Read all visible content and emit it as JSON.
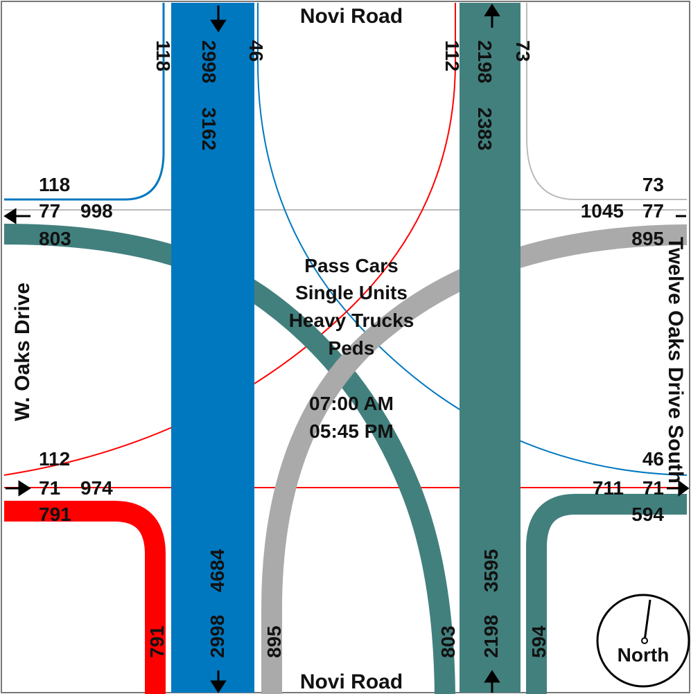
{
  "roads": {
    "north": "Novi Road",
    "south": "Novi Road",
    "west": "W. Oaks Drive",
    "east": "Twelve Oaks Drive South"
  },
  "legend": {
    "categories": [
      "Pass Cars",
      "Single Units",
      "Heavy Trucks",
      "Peds"
    ],
    "start_time": "07:00 AM",
    "end_time": "05:45 PM"
  },
  "north_leg": {
    "right_turn": "118",
    "through": "2998",
    "total": "3162",
    "left_turn": "46",
    "in_right": "112",
    "in_through": "2198",
    "in_total": "2383",
    "in_left": "73"
  },
  "west_leg": {
    "top_right_turn": "118",
    "top_through": "77",
    "top_total": "998",
    "top_left": "803",
    "bottom_right": "112",
    "bottom_through": "71",
    "bottom_total": "974",
    "bottom_left": "791"
  },
  "east_leg": {
    "top_right": "73",
    "top_total": "1045",
    "top_through": "77",
    "top_left": "895",
    "bottom_right": "46",
    "bottom_total": "711",
    "bottom_through": "71",
    "bottom_left": "594"
  },
  "south_leg": {
    "left": "791",
    "through": "2998",
    "total": "4684",
    "right": "895",
    "in_left": "803",
    "in_through": "2198",
    "in_total": "3595",
    "in_right": "594"
  },
  "compass": {
    "label": "North"
  },
  "colors": {
    "blue": "#0078c0",
    "teal": "#42807e",
    "gray": "#aaaaaa",
    "red": "#ff0000",
    "line": "#bbbbbb"
  }
}
